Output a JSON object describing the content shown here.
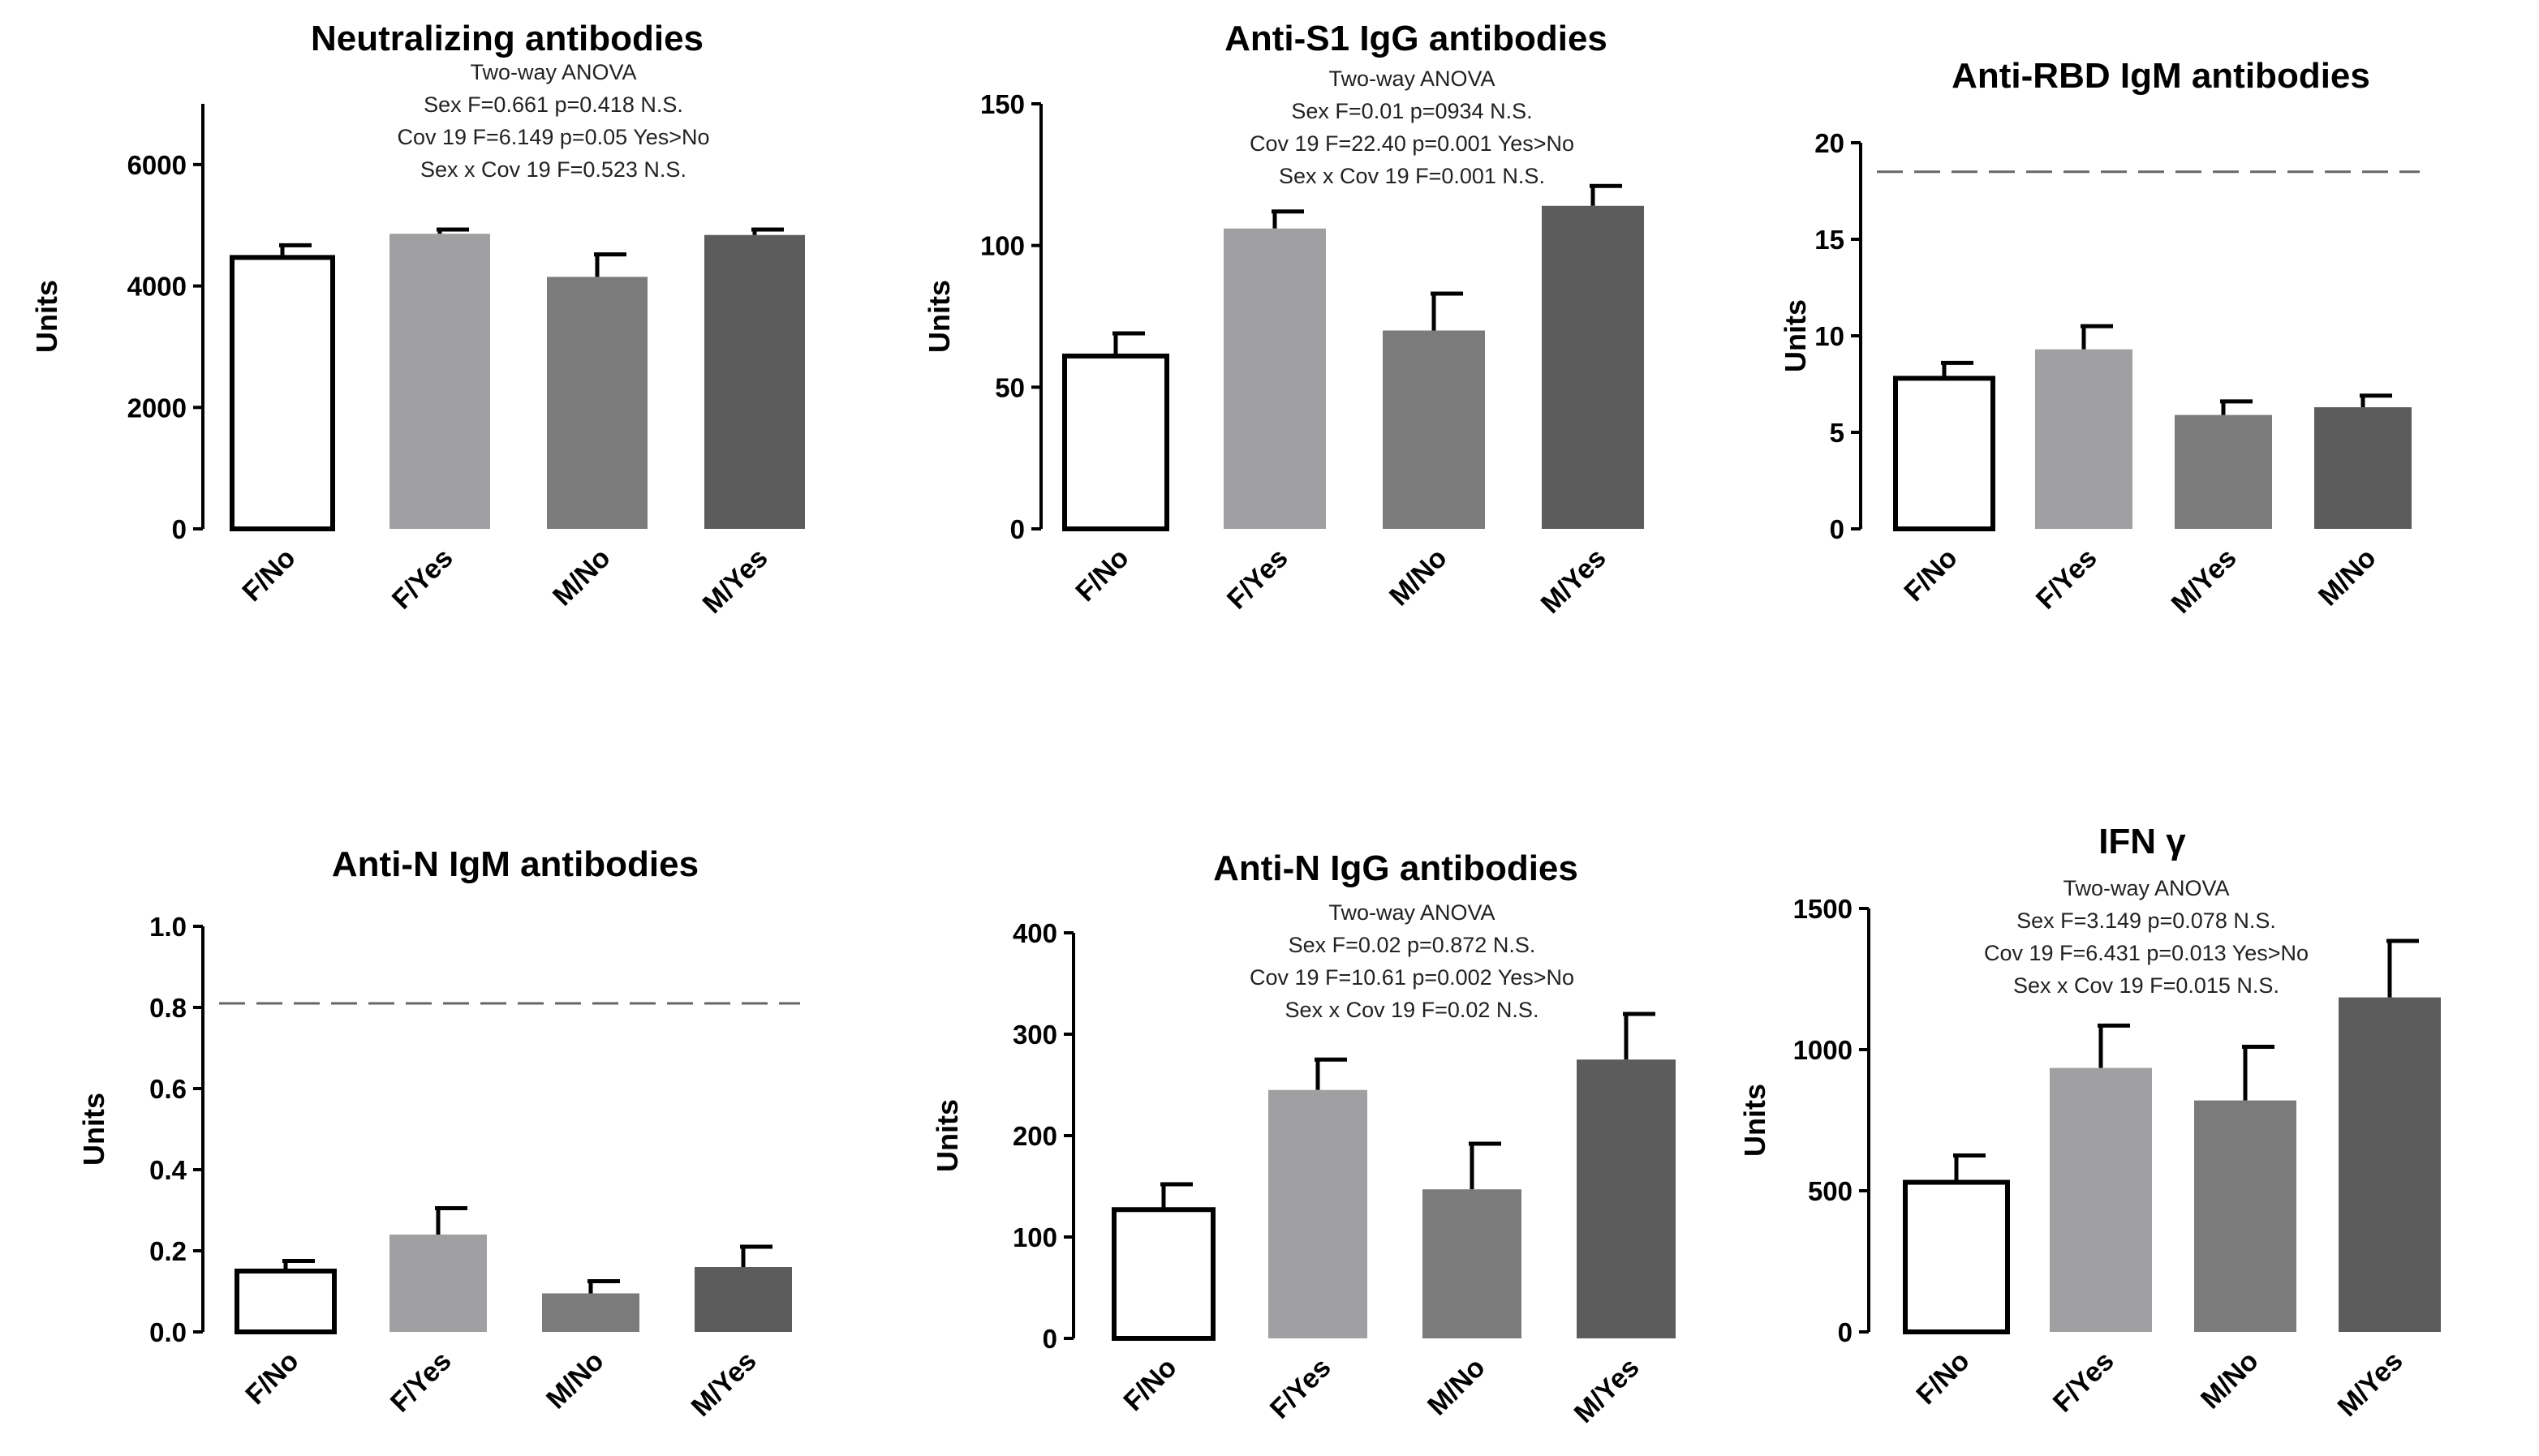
{
  "figure": {
    "panels": [
      {
        "title": "Neutralizing antibodies",
        "stats": [
          {
            "text": "Two-way ANOVA",
            "color": "#222222"
          },
          {
            "text": "Sex  F=0.661       p=0.418 N.S.",
            "color": "#222222"
          },
          {
            "text": "Cov 19 F=6.149 p=0.05 Yes>No",
            "color": "#e8231d"
          },
          {
            "text": "Sex x Cov 19 F=0.523       N.S.",
            "color": "#222222"
          }
        ]
      },
      {
        "title": "Anti-S1 IgG antibodies",
        "stats": [
          {
            "text": "Two-way ANOVA",
            "color": "#222222"
          },
          {
            "text": "Sex F=0.01 p=0934   N.S.",
            "color": "#222222"
          },
          {
            "text": "Cov 19 F=22.40 p=0.001 Yes>No",
            "color": "#e8231d"
          },
          {
            "text": "Sex x Cov 19 F=0.001       N.S.",
            "color": "#222222"
          }
        ]
      },
      {
        "title": "Anti-RBD IgM antibodies",
        "stats": []
      },
      {
        "title": "Anti-N IgM antibodies",
        "stats": []
      },
      {
        "title": "Anti-N IgG antibodies",
        "stats": [
          {
            "text": "Two-way ANOVA",
            "color": "#222222"
          },
          {
            "text": "Sex F=0.02  p=0.872 N.S.",
            "color": "#222222"
          },
          {
            "text": "Cov 19 F=10.61 p=0.002 Yes>No",
            "color": "#e8231d"
          },
          {
            "text": "Sex x Cov 19 F=0.02 N.S.",
            "color": "#222222"
          }
        ]
      },
      {
        "title": "IFN γ",
        "stats": [
          {
            "text": "Two-way ANOVA",
            "color": "#222222"
          },
          {
            "text": "Sex  F=3.149       p=0.078 N.S.",
            "color": "#222222"
          },
          {
            "text": "Cov 19 F=6.431 p=0.013 Yes>No",
            "color": "#e8231d"
          },
          {
            "text": "Sex x Cov 19 F=0.015       N.S.",
            "color": "#222222"
          }
        ]
      }
    ]
  },
  "chart_data": [
    {
      "type": "bar",
      "title": "Neutralizing antibodies",
      "ylabel": "Units",
      "categories": [
        "F/No",
        "F/Yes",
        "M/No",
        "M/Yes"
      ],
      "values": [
        4470,
        4860,
        4150,
        4840
      ],
      "error_upper": [
        4670,
        4930,
        4520,
        4930
      ],
      "bar_colors": [
        "#ffffff",
        "#a0a0a3",
        "#7b7b7b",
        "#5c5c5c"
      ],
      "ylim": [
        0,
        7000
      ],
      "yticks": [
        0,
        2000,
        4000,
        6000
      ],
      "reference_line": null
    },
    {
      "type": "bar",
      "title": "Anti-S1 IgG antibodies",
      "ylabel": "Units",
      "categories": [
        "F/No",
        "F/Yes",
        "M/No",
        "M/Yes"
      ],
      "values": [
        61,
        106,
        70,
        114
      ],
      "error_upper": [
        69,
        112,
        83,
        121
      ],
      "bar_colors": [
        "#ffffff",
        "#a0a0a3",
        "#7b7b7b",
        "#5c5c5c"
      ],
      "ylim": [
        0,
        150
      ],
      "yticks": [
        0,
        50,
        100,
        150
      ],
      "reference_line": null
    },
    {
      "type": "bar",
      "title": "Anti-RBD IgM antibodies",
      "ylabel": "Units",
      "categories": [
        "F/No",
        "F/Yes",
        "M/Yes",
        "M/No"
      ],
      "values": [
        7.8,
        9.3,
        5.9,
        6.3
      ],
      "error_upper": [
        8.6,
        10.5,
        6.6,
        6.9
      ],
      "bar_colors": [
        "#ffffff",
        "#a0a0a3",
        "#7b7b7b",
        "#5c5c5c"
      ],
      "ylim": [
        0,
        20
      ],
      "yticks": [
        0,
        5,
        10,
        15,
        20
      ],
      "reference_line": 18.5
    },
    {
      "type": "bar",
      "title": "Anti-N IgM antibodies",
      "ylabel": "Units",
      "categories": [
        "F/No",
        "F/Yes",
        "M/No",
        "M/Yes"
      ],
      "values": [
        0.15,
        0.24,
        0.095,
        0.16
      ],
      "error_upper": [
        0.175,
        0.305,
        0.125,
        0.21
      ],
      "bar_colors": [
        "#ffffff",
        "#a0a0a3",
        "#7b7b7b",
        "#5c5c5c"
      ],
      "ylim": [
        0,
        1.0
      ],
      "yticks": [
        0.0,
        0.2,
        0.4,
        0.6,
        0.8,
        1.0
      ],
      "tick_decimals": 1,
      "reference_line": 0.81
    },
    {
      "type": "bar",
      "title": "Anti-N IgG antibodies",
      "ylabel": "Units",
      "categories": [
        "F/No",
        "F/Yes",
        "M/No",
        "M/Yes"
      ],
      "values": [
        127,
        245,
        147,
        275
      ],
      "error_upper": [
        152,
        275,
        192,
        320
      ],
      "bar_colors": [
        "#ffffff",
        "#a0a0a3",
        "#7b7b7b",
        "#5c5c5c"
      ],
      "ylim": [
        0,
        400
      ],
      "yticks": [
        0,
        100,
        200,
        300,
        400
      ],
      "reference_line": null
    },
    {
      "type": "bar",
      "title": "IFN γ",
      "ylabel": "Units",
      "categories": [
        "F/No",
        "F/Yes",
        "M/No",
        "M/Yes"
      ],
      "values": [
        530,
        935,
        820,
        1185
      ],
      "error_upper": [
        625,
        1085,
        1010,
        1385
      ],
      "bar_colors": [
        "#ffffff",
        "#a0a0a3",
        "#7b7b7b",
        "#5c5c5c"
      ],
      "ylim": [
        0,
        1500
      ],
      "yticks": [
        0,
        500,
        1000,
        1500
      ],
      "reference_line": null
    }
  ]
}
